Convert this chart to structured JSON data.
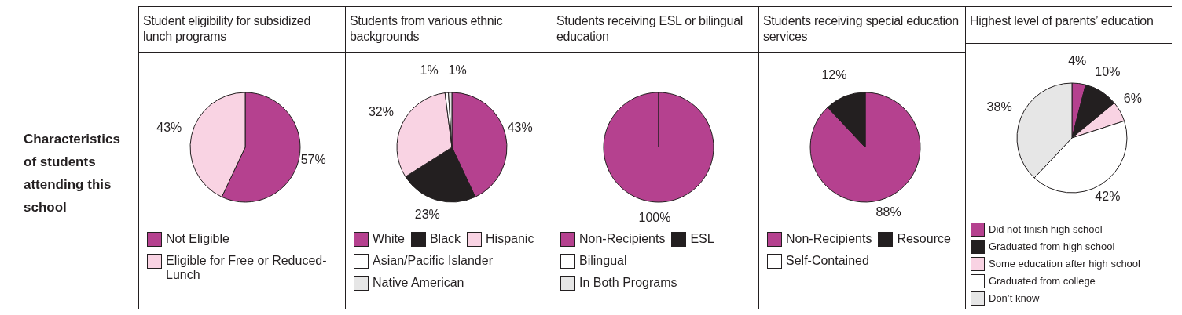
{
  "chart_data": [
    {
      "type": "other",
      "title": "Characteristics of students attending this school"
    },
    {
      "type": "pie",
      "title": "Student eligibility for subsidized lunch programs",
      "categories": [
        "Not Eligible",
        "Eligible for Free or Reduced-Lunch"
      ],
      "values": [
        57,
        43
      ],
      "colors": [
        "#b5418f",
        "#f9d3e3"
      ],
      "value_labels": [
        "57%",
        "43%"
      ],
      "legend": "bottom"
    },
    {
      "type": "pie",
      "title": "Students from various ethnic backgrounds",
      "categories": [
        "White",
        "Black",
        "Hispanic",
        "Asian/Pacific Islander",
        "Native American"
      ],
      "values": [
        43,
        23,
        32,
        1,
        1
      ],
      "colors": [
        "#b5418f",
        "#231f20",
        "#f9d3e3",
        "#ffffff",
        "#e6e6e6"
      ],
      "value_labels": [
        "43%",
        "23%",
        "32%",
        "1%",
        "1%"
      ],
      "legend": "bottom"
    },
    {
      "type": "pie",
      "title": "Students receiving ESL or bilingual education",
      "categories": [
        "Non-Recipients",
        "ESL",
        "Bilingual",
        "In Both Programs"
      ],
      "values": [
        100,
        0,
        0,
        0
      ],
      "colors": [
        "#b5418f",
        "#231f20",
        "#ffffff",
        "#e6e6e6"
      ],
      "value_labels": [
        "100%",
        null,
        null,
        null
      ],
      "legend": "bottom"
    },
    {
      "type": "pie",
      "title": "Students receiving special education services",
      "categories": [
        "Non-Recipients",
        "Resource",
        "Self-Contained"
      ],
      "values": [
        88,
        12,
        0
      ],
      "colors": [
        "#b5418f",
        "#231f20",
        "#ffffff"
      ],
      "value_labels": [
        "88%",
        "12%",
        null
      ],
      "legend": "bottom"
    },
    {
      "type": "pie",
      "title": "Highest level of parents’ education",
      "categories": [
        "Did not finish high school",
        "Graduated from high school",
        "Some education after high school",
        "Graduated from college",
        "Don’t know"
      ],
      "values": [
        4,
        10,
        6,
        42,
        38
      ],
      "colors": [
        "#b5418f",
        "#231f20",
        "#f9d3e3",
        "#ffffff",
        "#e6e6e6"
      ],
      "value_labels": [
        "4%",
        "10%",
        "6%",
        "42%",
        "38%"
      ],
      "legend": "bottom"
    }
  ]
}
